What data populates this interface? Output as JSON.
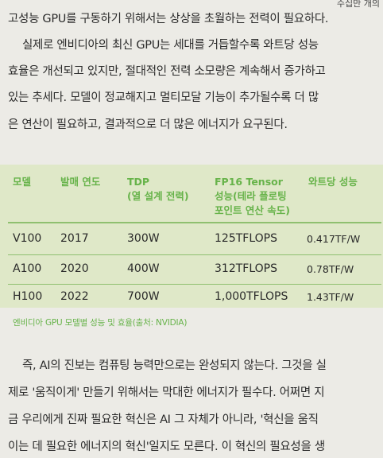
{
  "top_fragment": "수십만 개의",
  "para1": [
    "고성능 GPU를 구동하기 위해서는 상상을 초월하는 전력이 필요하다.",
    "실제로 엔비디아의 최신 GPU는 세대를 거듭할수록 와트당 성능",
    "효율은 개선되고 있지만, 절대적인 전력 소모량은 계속해서 증가하고",
    "있는 추세다. 모델이 정교해지고 멀티모달 기능이 추가될수록 더 많",
    "은 연산이 필요하고, 결과적으로 더 많은 에너지가 요구된다."
  ],
  "table": {
    "headers": {
      "model": "모델",
      "year": "발매 연도",
      "tdp": [
        "TDP",
        "(열 설계 전력)"
      ],
      "fp16": [
        "FP16 Tensor",
        "성능(테라 플로팅",
        "포인트 연산 속도)"
      ],
      "perf": "와트당 성능"
    },
    "rows": [
      {
        "model": "V100",
        "year": "2017",
        "tdp": "300W",
        "fp16": "125TFLOPS",
        "perf": "0.417TF/W"
      },
      {
        "model": "A100",
        "year": "2020",
        "tdp": "400W",
        "fp16": "312TFLOPS",
        "perf": "0.78TF/W"
      },
      {
        "model": "H100",
        "year": "2022",
        "tdp": "700W",
        "fp16": "1,000TFLOPS",
        "perf": "1.43TF/W"
      }
    ],
    "caption": "엔비디아 GPU 모델별 성능 및 효율(출처: NVIDIA)"
  },
  "para2": [
    "즉, AI의 진보는 컴퓨팅 능력만으로는 완성되지 않는다. 그것을 실",
    "제로 '움직이게' 만들기 위해서는 막대한 에너지가 필수다. 어쩌면 지",
    "금 우리에게 진짜 필요한 혁신은 AI 그 자체가 아니라, '혁신을 움직",
    "이는 데 필요한 에너지의 혁신'일지도 모른다. 이 혁신의 필요성을 생"
  ]
}
